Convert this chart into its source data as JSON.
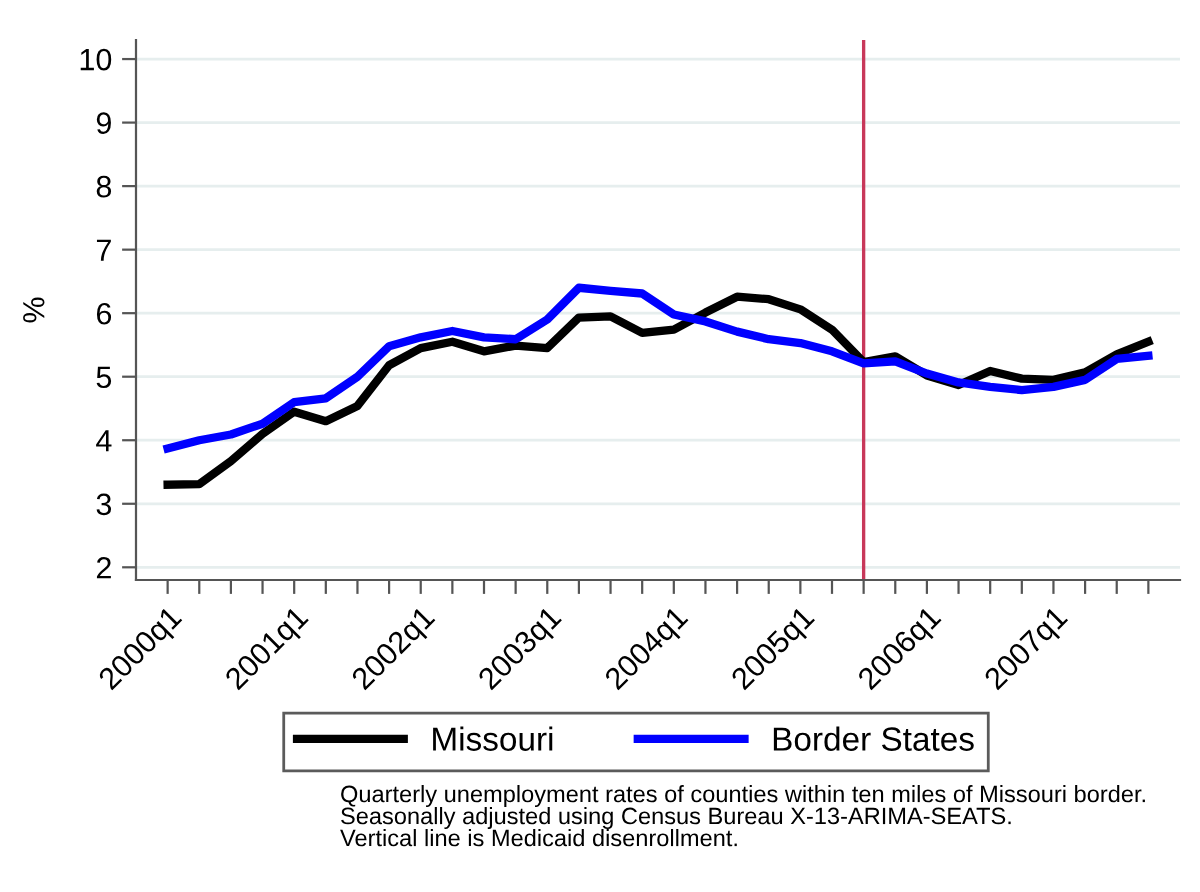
{
  "chart_data": {
    "type": "line",
    "ylabel": "%",
    "x": [
      "2000-01",
      "2000-04",
      "2000-07",
      "2000-10",
      "2001-01",
      "2001-04",
      "2001-07",
      "2001-10",
      "2002-01",
      "2002-04",
      "2002-07",
      "2002-10",
      "2003-01",
      "2003-04",
      "2003-07",
      "2003-10",
      "2004-01",
      "2004-04",
      "2004-07",
      "2004-10",
      "2005-01",
      "2005-04",
      "2005-07",
      "2005-10",
      "2006-01",
      "2006-04",
      "2006-07",
      "2006-10",
      "2007-01",
      "2007-04",
      "2007-07",
      "2007-10"
    ],
    "series": [
      {
        "name": "Missouri",
        "color": "#000000",
        "values": [
          3.3,
          3.31,
          3.67,
          4.1,
          4.45,
          4.3,
          4.54,
          5.18,
          5.45,
          5.55,
          5.4,
          5.49,
          5.45,
          5.93,
          5.95,
          5.69,
          5.74,
          6.01,
          6.26,
          6.22,
          6.06,
          5.74,
          5.23,
          5.32,
          5.02,
          4.87,
          5.09,
          4.97,
          4.95,
          5.07,
          5.35,
          5.55
        ]
      },
      {
        "name": "Border States",
        "color": "#0000ff",
        "values": [
          3.87,
          4.0,
          4.09,
          4.26,
          4.6,
          4.66,
          5.0,
          5.48,
          5.62,
          5.72,
          5.62,
          5.59,
          5.9,
          6.4,
          6.35,
          6.31,
          5.98,
          5.87,
          5.71,
          5.59,
          5.53,
          5.4,
          5.21,
          5.24,
          5.05,
          4.91,
          4.84,
          4.79,
          4.84,
          4.95,
          5.28,
          5.33
        ]
      }
    ],
    "xlim": [
      "1999-10",
      "2008-01"
    ],
    "xticks": [
      {
        "value": "2000-01",
        "label": "2000q1"
      },
      {
        "value": "2000-04",
        "label": null
      },
      {
        "value": "2000-07",
        "label": null
      },
      {
        "value": "2000-10",
        "label": null
      },
      {
        "value": "2001-01",
        "label": "2001q1"
      },
      {
        "value": "2001-04",
        "label": null
      },
      {
        "value": "2001-07",
        "label": null
      },
      {
        "value": "2001-10",
        "label": null
      },
      {
        "value": "2002-01",
        "label": "2002q1"
      },
      {
        "value": "2002-04",
        "label": null
      },
      {
        "value": "2002-07",
        "label": null
      },
      {
        "value": "2002-10",
        "label": null
      },
      {
        "value": "2003-01",
        "label": "2003q1"
      },
      {
        "value": "2003-04",
        "label": null
      },
      {
        "value": "2003-07",
        "label": null
      },
      {
        "value": "2003-10",
        "label": null
      },
      {
        "value": "2004-01",
        "label": "2004q1"
      },
      {
        "value": "2004-04",
        "label": null
      },
      {
        "value": "2004-07",
        "label": null
      },
      {
        "value": "2004-10",
        "label": null
      },
      {
        "value": "2005-01",
        "label": "2005q1"
      },
      {
        "value": "2005-04",
        "label": null
      },
      {
        "value": "2005-07",
        "label": null
      },
      {
        "value": "2005-10",
        "label": null
      },
      {
        "value": "2006-01",
        "label": "2006q1"
      },
      {
        "value": "2006-04",
        "label": null
      },
      {
        "value": "2006-07",
        "label": null
      },
      {
        "value": "2006-10",
        "label": null
      },
      {
        "value": "2007-01",
        "label": "2007q1"
      },
      {
        "value": "2007-04",
        "label": null
      },
      {
        "value": "2007-07",
        "label": null
      },
      {
        "value": "2007-10",
        "label": null
      }
    ],
    "ylim": [
      1.8,
      10.3
    ],
    "yticks": [
      2,
      3,
      4,
      5,
      6,
      7,
      8,
      9,
      10
    ],
    "ref_lines": [
      {
        "axis": "x",
        "value": "2005-07",
        "color": "#c8385a"
      }
    ],
    "grid": "y",
    "legend": "bottom",
    "marker": "none",
    "line_style": "solid",
    "annotations": [
      "Quarterly unemployment rates of counties within ten miles of Missouri border.",
      "Seasonally adjusted using Census Bureau X-13-ARIMA-SEATS.",
      "Vertical line is Medicaid disenrollment."
    ]
  }
}
